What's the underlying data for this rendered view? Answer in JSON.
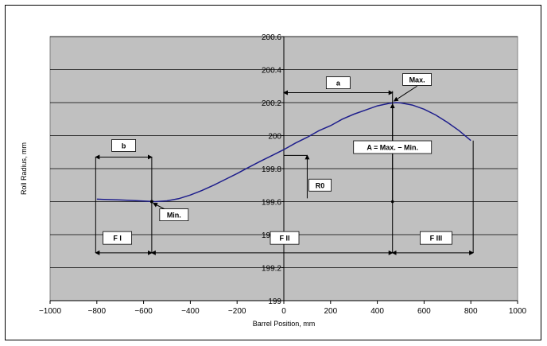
{
  "chart_data": {
    "type": "line",
    "xlabel": "Barrel Position, mm",
    "ylabel": "Roll Radius, mm",
    "xlim": [
      -1000,
      1000
    ],
    "ylim": [
      199,
      200.6
    ],
    "xticks": [
      -1000,
      -800,
      -600,
      -400,
      -200,
      0,
      200,
      400,
      600,
      800,
      1000
    ],
    "xtick_labels": [
      "−1000",
      "−800",
      "−600",
      "−400",
      "−200",
      "0",
      "200",
      "400",
      "600",
      "800",
      "1000"
    ],
    "yticks": [
      199,
      199.2,
      199.4,
      199.6,
      199.8,
      200,
      200.2,
      200.4,
      200.6
    ],
    "ytick_labels": [
      "199",
      "199.2",
      "199.4",
      "199.6",
      "199.8",
      "200",
      "200.2",
      "200.4",
      "200.6"
    ],
    "grid": true,
    "plot_background": "#c0c0c0",
    "line_color": "#1e1e8c",
    "series": [
      {
        "x": [
          -800,
          -700,
          -650,
          -600,
          -550,
          -500,
          -450,
          -400,
          -350,
          -300,
          -250,
          -200,
          -150,
          -100,
          -50,
          0,
          50,
          100,
          150,
          200,
          250,
          300,
          350,
          400,
          450,
          480,
          500,
          550,
          600,
          650,
          700,
          750,
          800
        ],
        "y": [
          199.615,
          199.61,
          199.607,
          199.604,
          199.6,
          199.605,
          199.618,
          199.64,
          199.668,
          199.7,
          199.735,
          199.77,
          199.808,
          199.845,
          199.88,
          199.915,
          199.955,
          199.99,
          200.03,
          200.06,
          200.1,
          200.13,
          200.155,
          200.18,
          200.195,
          200.2,
          200.198,
          200.185,
          200.16,
          200.125,
          200.08,
          200.03,
          199.97
        ]
      }
    ],
    "annotations": {
      "max_label": "Max.",
      "min_label": "Min.",
      "a_label": "a",
      "b_label": "b",
      "A_label": "A = Max. − Min.",
      "R0_label": "R0",
      "F1_label": "F I",
      "F2_label": "F II",
      "F3_label": "F III"
    }
  }
}
